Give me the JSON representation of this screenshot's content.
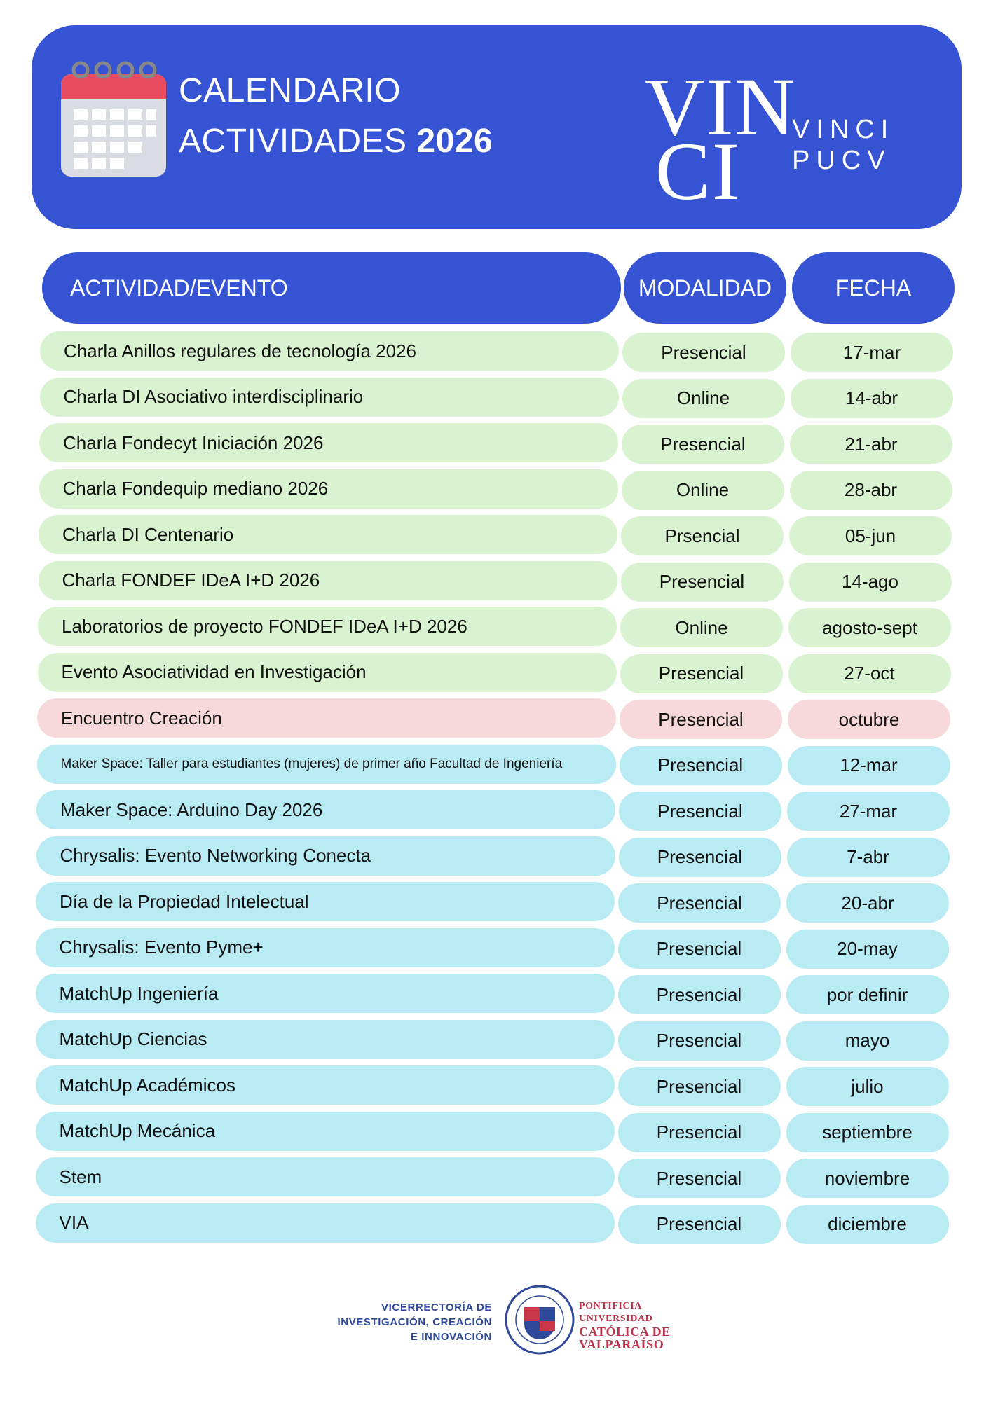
{
  "header": {
    "title_line1": "CALENDARIO",
    "title_line2": "ACTIVIDADES",
    "year": "2026",
    "logo_mark_top": "VIN",
    "logo_mark_bottom": "CI",
    "logo_line1": "VINCI",
    "logo_line2": "PUCV"
  },
  "table": {
    "headers": [
      "ACTIVIDAD/EVENTO",
      "MODALIDAD",
      "FECHA"
    ],
    "header_color": "#3553d2",
    "rows": [
      {
        "activity": "Charla Anillos regulares de tecnología 2026",
        "modality": "Presencial",
        "date": "17-mar",
        "color": "#d9f3d0"
      },
      {
        "activity": "Charla DI Asociativo interdisciplinario",
        "modality": "Online",
        "date": "14-abr",
        "color": "#d9f3d0"
      },
      {
        "activity": "Charla Fondecyt Iniciación 2026",
        "modality": "Presencial",
        "date": "21-abr",
        "color": "#d9f3d0"
      },
      {
        "activity": "Charla Fondequip mediano 2026",
        "modality": "Online",
        "date": "28-abr",
        "color": "#d9f3d0"
      },
      {
        "activity": "Charla DI Centenario",
        "modality": "Prsencial",
        "date": "05-jun",
        "color": "#d9f3d0"
      },
      {
        "activity": "Charla FONDEF IDeA I+D 2026",
        "modality": "Presencial",
        "date": "14-ago",
        "color": "#d9f3d0"
      },
      {
        "activity": "Laboratorios de proyecto FONDEF IDeA I+D 2026",
        "modality": "Online",
        "date": "agosto-sept",
        "color": "#d9f3d0"
      },
      {
        "activity": "Evento Asociatividad en Investigación",
        "modality": "Presencial",
        "date": "27-oct",
        "color": "#d9f3d0"
      },
      {
        "activity": "Encuentro Creación",
        "modality": "Presencial",
        "date": "octubre",
        "color": "#f7d9dc"
      },
      {
        "activity": "Maker Space: Taller para estudiantes (mujeres) de primer año Facultad de Ingeniería",
        "modality": "Presencial",
        "date": "12-mar",
        "color": "#b8ebf4"
      },
      {
        "activity": "Maker Space: Arduino Day 2026",
        "modality": "Presencial",
        "date": "27-mar",
        "color": "#b8ebf4"
      },
      {
        "activity": "Chrysalis: Evento Networking Conecta",
        "modality": "Presencial",
        "date": "7-abr",
        "color": "#b8ebf4"
      },
      {
        "activity": "Día de la Propiedad Intelectual",
        "modality": "Presencial",
        "date": "20-abr",
        "color": "#b8ebf4"
      },
      {
        "activity": "Chrysalis: Evento Pyme+",
        "modality": "Presencial",
        "date": "20-may",
        "color": "#b8ebf4"
      },
      {
        "activity": "MatchUp Ingeniería",
        "modality": "Presencial",
        "date": "por definir",
        "color": "#b8ebf4"
      },
      {
        "activity": "MatchUp Ciencias",
        "modality": "Presencial",
        "date": "mayo",
        "color": "#b8ebf4"
      },
      {
        "activity": "MatchUp Académicos",
        "modality": "Presencial",
        "date": "julio",
        "color": "#b8ebf4"
      },
      {
        "activity": "MatchUp Mecánica",
        "modality": "Presencial",
        "date": "septiembre",
        "color": "#b8ebf4"
      },
      {
        "activity": "Stem",
        "modality": "Presencial",
        "date": "noviembre",
        "color": "#b8ebf4"
      },
      {
        "activity": "VIA",
        "modality": "Presencial",
        "date": "diciembre",
        "color": "#b8ebf4"
      }
    ]
  },
  "footer": {
    "left_lines": [
      "VICERRECTORÍA DE",
      "INVESTIGACIÓN, CREACIÓN",
      "E INNOVACIÓN"
    ],
    "right_lines": [
      "PONTIFICIA",
      "UNIVERSIDAD",
      "CATÓLICA DE",
      "VALPARAÍSO"
    ]
  }
}
